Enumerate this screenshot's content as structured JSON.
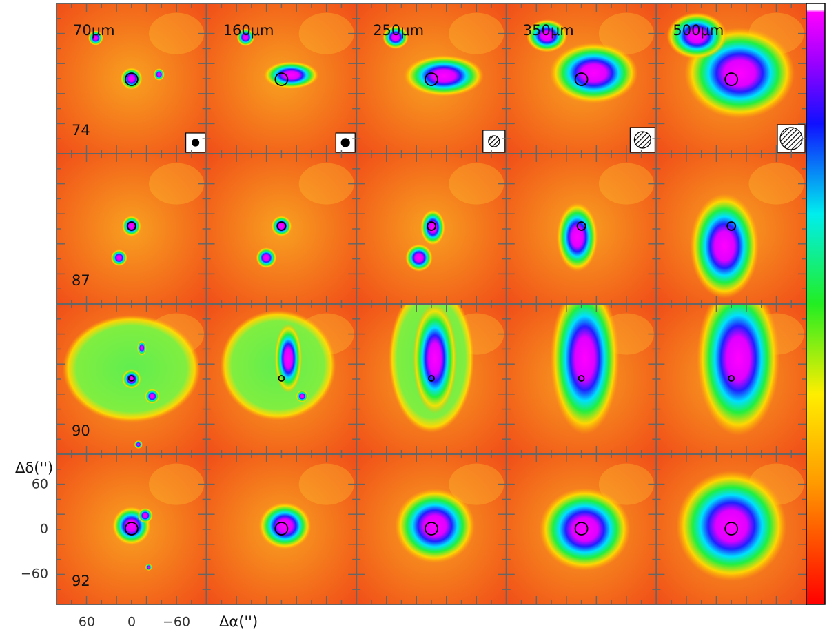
{
  "figure": {
    "columns": [
      "70μm",
      "160μm",
      "250μm",
      "350μm",
      "500μm"
    ],
    "rows": [
      "74",
      "87",
      "90",
      "92"
    ],
    "y_axis_label": "Δδ('')",
    "x_axis_label": "Δα('')",
    "yticks": [
      "60",
      "0",
      "−60"
    ],
    "xticks": [
      "60",
      "0",
      "−60"
    ]
  }
}
